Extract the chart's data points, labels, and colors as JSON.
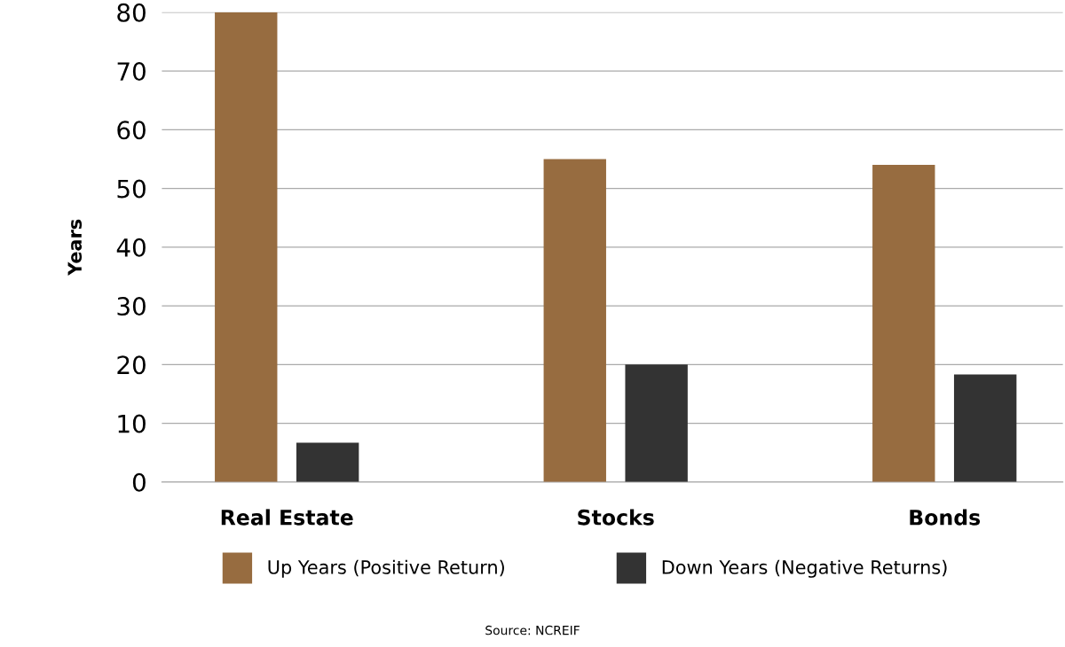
{
  "chart_data": {
    "type": "bar",
    "ylabel": "Years",
    "categories": [
      "Real Estate",
      "Stocks",
      "Bonds"
    ],
    "series": [
      {
        "name": "Up Years (Positive Return)",
        "color": "#976c40",
        "values": [
          80,
          55,
          54
        ]
      },
      {
        "name": "Down Years (Negative Returns)",
        "color": "#333333",
        "values": [
          6.7,
          20,
          18.3
        ]
      }
    ],
    "ylim": [
      0,
      80
    ],
    "yticks": [
      0,
      10,
      20,
      30,
      40,
      50,
      60,
      70,
      80
    ],
    "grid": "y",
    "legend": "bottom",
    "annotations": [
      "Source: NCREIF"
    ]
  }
}
